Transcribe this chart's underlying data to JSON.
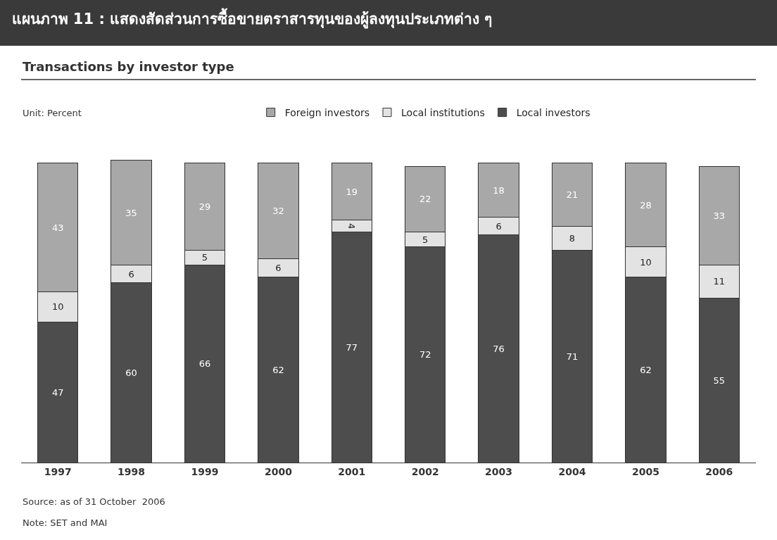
{
  "chart_data": {
    "type": "bar",
    "title": "แผนภาพ 11 : แสดงสัดส่วนการซื้อขายตราสารทุนของผู้ลงทุนประเภทต่าง ๆ",
    "subtitle": "Transactions by investor type",
    "categories": [
      "1997",
      "1998",
      "1999",
      "2000",
      "2001",
      "2002",
      "2003",
      "2004",
      "2005",
      "2006"
    ],
    "stacked": true,
    "data_labels": true,
    "legend": "top",
    "series": [
      {
        "name": "Local investors",
        "color": "#4d4d4d",
        "values": [
          47,
          60,
          66,
          62,
          77,
          72,
          76,
          71,
          62,
          55
        ]
      },
      {
        "name": "Local institutions",
        "color": "#e3e3e3",
        "values": [
          10,
          6,
          5,
          6,
          4,
          5,
          6,
          8,
          10,
          11
        ]
      },
      {
        "name": "Foreign investors",
        "color": "#a8a8a8",
        "values": [
          43,
          35,
          29,
          32,
          19,
          22,
          18,
          21,
          28,
          33
        ]
      }
    ],
    "annotations": [
      "Unit: Percent",
      "Source: as of 31 October  2006",
      "Note: SET and MAI"
    ]
  }
}
